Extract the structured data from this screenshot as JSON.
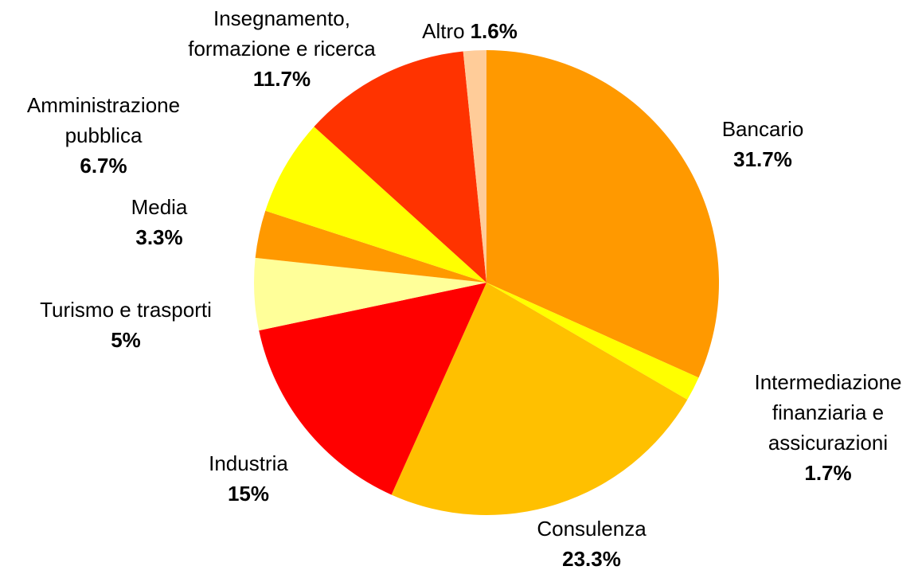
{
  "chart_data": {
    "type": "pie",
    "categories": [
      "Bancario",
      "Intermediazione finanziaria e assicurazioni",
      "Consulenza",
      "Industria",
      "Turismo e trasporti",
      "Media",
      "Amministrazione pubblica",
      "Insegnamento, formazione e ricerca",
      "Altro"
    ],
    "values": [
      31.7,
      1.7,
      23.3,
      15,
      5,
      3.3,
      6.7,
      11.7,
      1.6
    ],
    "value_labels": [
      "31.7%",
      "1.7%",
      "23.3%",
      "15%",
      "5%",
      "3.3%",
      "6.7%",
      "11.7%",
      "1.6%"
    ],
    "colors": [
      "#FF9900",
      "#FFFF00",
      "#FFC000",
      "#FF0000",
      "#FFFF99",
      "#FF9900",
      "#FFFF00",
      "#FF3300",
      "#FFCC99"
    ]
  }
}
